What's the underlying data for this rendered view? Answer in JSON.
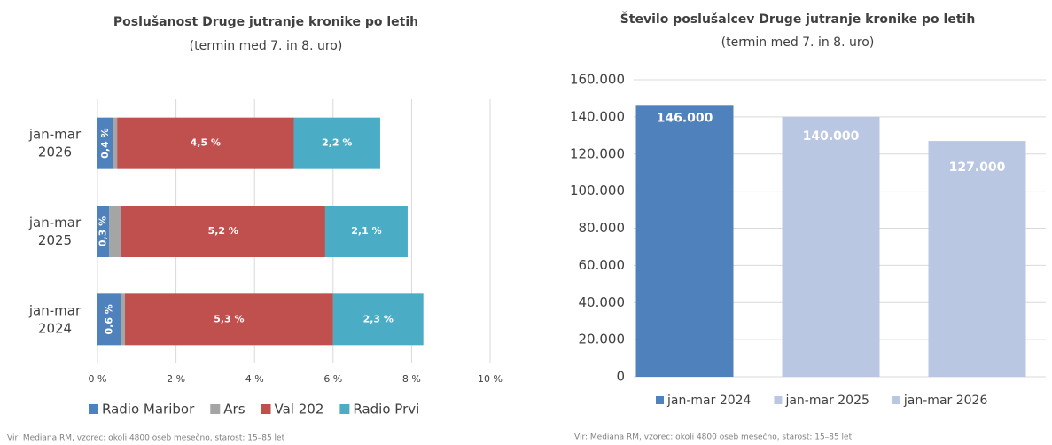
{
  "chart_data": [
    {
      "type": "stacked-barh",
      "title": "Poslušanost Druge jutranje kronike po letih",
      "subtitle": "(termin med 7. in 8. uro)",
      "categories": [
        "jan-mar 2026",
        "jan-mar 2025",
        "jan-mar 2024"
      ],
      "series": [
        {
          "name": "Radio Maribor",
          "color": "#4f81bd",
          "values": [
            0.4,
            0.3,
            0.6
          ],
          "value_labels": [
            "0,4 %",
            "0,3 %",
            "0,6 %"
          ]
        },
        {
          "name": "Ars",
          "color": "#a5a5a5",
          "values": [
            0.1,
            0.3,
            0.1
          ]
        },
        {
          "name": "Val 202",
          "color": "#c0504d",
          "values": [
            4.5,
            5.2,
            5.3
          ],
          "value_labels": [
            "4,5 %",
            "5,2 %",
            "5,3 %"
          ]
        },
        {
          "name": "Radio Prvi",
          "color": "#4bacc6",
          "values": [
            2.2,
            2.1,
            2.3
          ],
          "value_labels": [
            "2,2 %",
            "2,1 %",
            "2,3 %"
          ]
        }
      ],
      "xlim": [
        0,
        10
      ],
      "xticks": [
        {
          "value": 0,
          "label": "0 %"
        },
        {
          "value": 2,
          "label": "2 %"
        },
        {
          "value": 4,
          "label": "4 %"
        },
        {
          "value": 6,
          "label": "6 %"
        },
        {
          "value": 8,
          "label": "8 %"
        },
        {
          "value": 10,
          "label": "10 %"
        }
      ],
      "grid": true,
      "legend": "bottom",
      "source": "Vir: Mediana RM, vzorec: okoli 4800 oseb mesečno, starost: 15–85 let"
    },
    {
      "type": "bar",
      "title": "Število poslušalcev Druge jutranje kronike po letih",
      "subtitle": "(termin med 7. in 8. uro)",
      "categories": [
        "jan-mar 2024",
        "jan-mar 2025",
        "jan-mar 2026"
      ],
      "values": [
        146000,
        140000,
        127000
      ],
      "value_labels": [
        "146.000",
        "140.000",
        "127.000"
      ],
      "colors": [
        "#4f81bd",
        "#b9c7e3",
        "#b9c7e3"
      ],
      "ylim": [
        0,
        160000
      ],
      "yticks": [
        0,
        {
          "value": 20000,
          "label": "20.000"
        },
        {
          "value": 40000,
          "label": "40.000"
        },
        {
          "value": 60000,
          "label": "60.000"
        },
        {
          "value": 80000,
          "label": "80.000"
        },
        {
          "value": 100000,
          "label": "100.000"
        },
        {
          "value": 120000,
          "label": "120.000"
        },
        {
          "value": 140000,
          "label": "140.000"
        },
        {
          "value": 160000,
          "label": "160.000"
        }
      ],
      "grid": true,
      "legend": "bottom",
      "source": "Vir: Mediana RM, vzorec: okoli 4800 oseb mesečno, starost: 15–85 let"
    }
  ]
}
